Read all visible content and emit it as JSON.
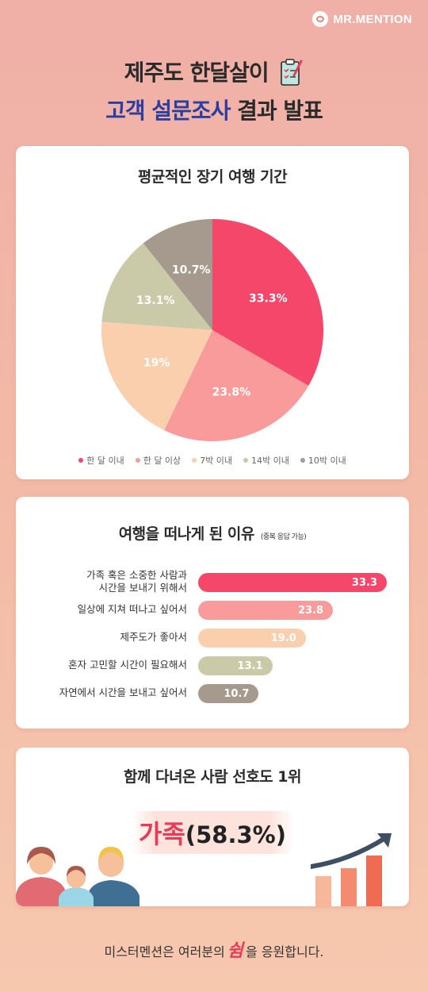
{
  "brand": {
    "name": "MR.MENTION"
  },
  "headline": {
    "line1": "제주도 한달살이",
    "line2_highlight": "고객 설문조사",
    "line2_rest": "결과 발표"
  },
  "chart_data": [
    {
      "type": "pie",
      "title": "평균적인 장기 여행 기간",
      "categories": [
        "한 달 이내",
        "한 달 이상",
        "7박 이내",
        "14박 이내",
        "10박 이내"
      ],
      "values": [
        33.3,
        23.8,
        19,
        13.1,
        10.7
      ],
      "labels": [
        "33.3%",
        "23.8%",
        "19%",
        "13.1%",
        "10.7%"
      ],
      "colors": [
        "#f4476a",
        "#f99b9b",
        "#f9cfae",
        "#cbcaa8",
        "#a69a8f"
      ],
      "legend": "bottom"
    },
    {
      "type": "bar",
      "orientation": "horizontal",
      "title": "여행을 떠나게 된 이유",
      "note": "(중복 응답 가능)",
      "categories": [
        "가족 혹은 소중한 사람과\n시간을 보내기 위해서",
        "일상에 지쳐 떠나고 싶어서",
        "제주도가 좋아서",
        "혼자 고민할 시간이 필요해서",
        "자연에서 시간을 보내고 싶어서"
      ],
      "values": [
        33.3,
        23.8,
        19.0,
        13.1,
        10.7
      ],
      "labels": [
        "33.3",
        "23.8",
        "19.0",
        "13.1",
        "10.7"
      ],
      "colors": [
        "#f4476a",
        "#f99b9b",
        "#f9cfae",
        "#cbcaa8",
        "#a69a8f"
      ],
      "xlim": [
        0,
        33.3
      ]
    }
  ],
  "companion": {
    "title": "함께 다녀온 사람 선호도 1위",
    "answer": "가족",
    "percent": "(58.3%)"
  },
  "footer": {
    "before": "미스터멘션은 여러분의",
    "highlight": "쉼",
    "after": "을 응원합니다."
  },
  "icons": [
    "clipboard-icon",
    "people-illustration",
    "growth-chart-icon"
  ]
}
